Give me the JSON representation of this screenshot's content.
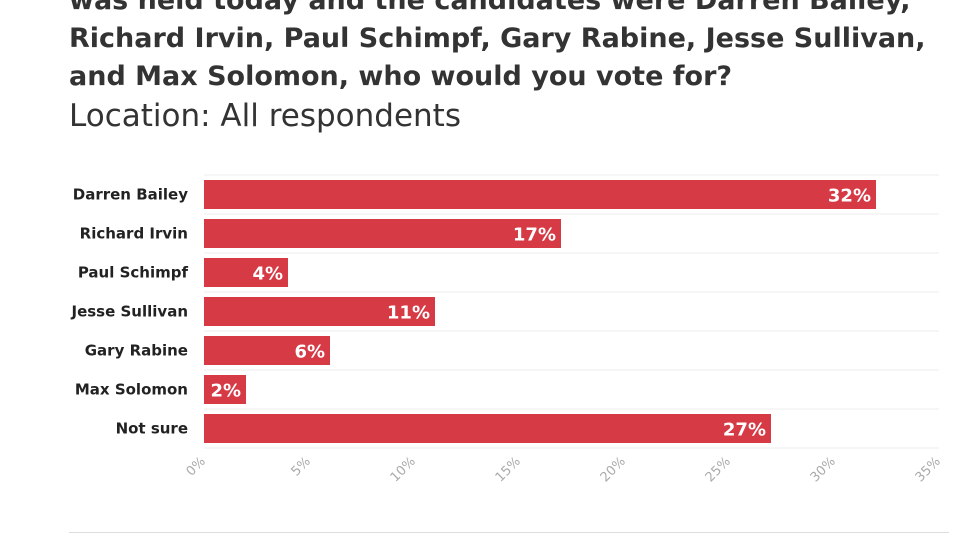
{
  "chart_data": {
    "type": "bar",
    "orientation": "horizontal",
    "title": "was held today and the candidates were Darren Bailey, Richard Irvin, Paul Schimpf, Gary Rabine, Jesse Sullivan, and Max Solomon, who would you vote for?",
    "subtitle": "Location: All respondents",
    "categories": [
      "Darren Bailey",
      "Richard Irvin",
      "Paul Schimpf",
      "Jesse Sullivan",
      "Gary Rabine",
      "Max Solomon",
      "Not sure"
    ],
    "values": [
      32,
      17,
      4,
      11,
      6,
      2,
      27
    ],
    "value_labels": [
      "32%",
      "17%",
      "4%",
      "11%",
      "6%",
      "2%",
      "27%"
    ],
    "xlim": [
      0,
      35
    ],
    "ticks": [
      0,
      5,
      10,
      15,
      20,
      25,
      30,
      35
    ],
    "tick_labels": [
      "0%",
      "5%",
      "10%",
      "15%",
      "20%",
      "25%",
      "30%",
      "35%"
    ],
    "bar_color": "#d63a45",
    "grid": true,
    "legend": "none"
  }
}
